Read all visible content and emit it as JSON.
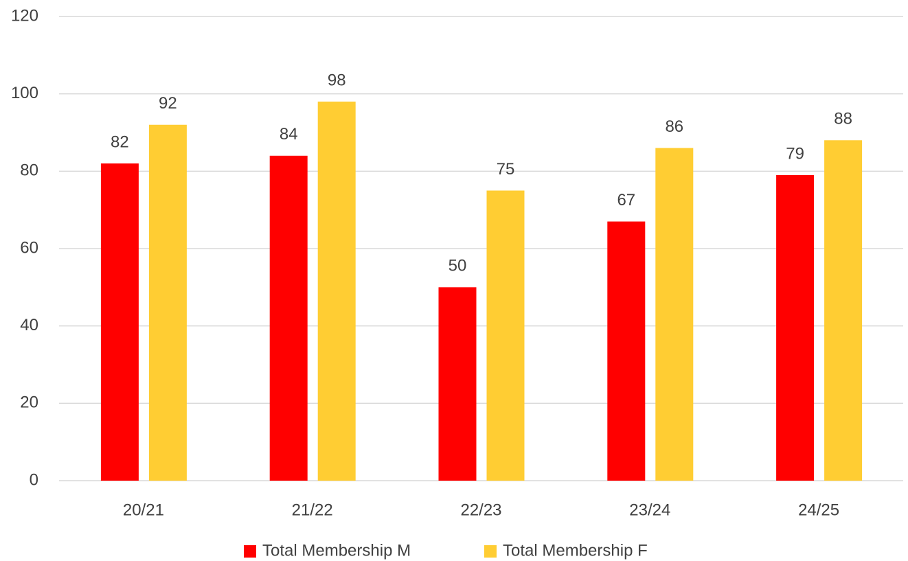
{
  "chart_data": {
    "type": "bar",
    "categories": [
      "20/21",
      "21/22",
      "22/23",
      "23/24",
      "24/25"
    ],
    "series": [
      {
        "name": "Total Membership M",
        "color": "#ff0000",
        "values": [
          82,
          84,
          50,
          67,
          79
        ]
      },
      {
        "name": "Total Membership F",
        "color": "#ffcd33",
        "values": [
          92,
          98,
          75,
          86,
          88
        ]
      }
    ],
    "ylim": [
      0,
      120
    ],
    "yticks": [
      0,
      20,
      40,
      60,
      80,
      100,
      120
    ],
    "grid": true,
    "legend": "bottom"
  }
}
